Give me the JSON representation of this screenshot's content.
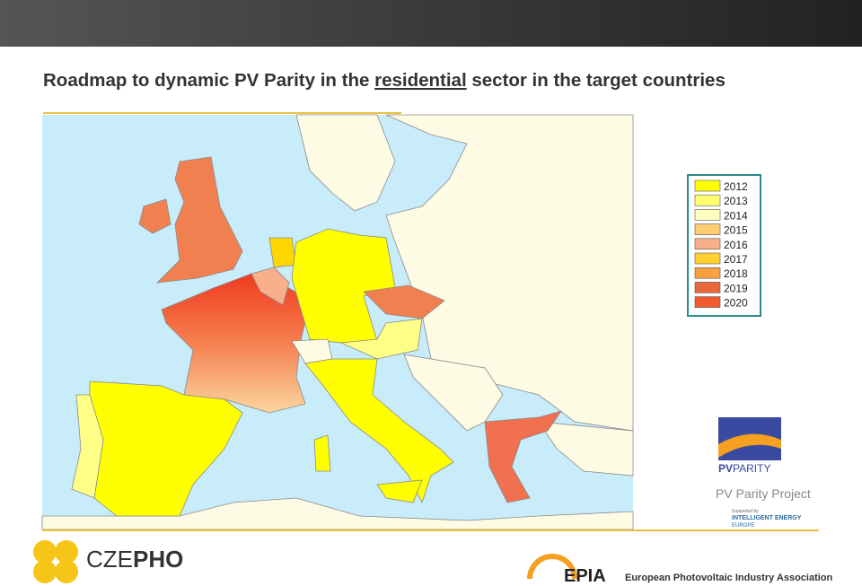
{
  "header": {
    "title_parts": [
      "Roadmap to dynamic PV Parity in the ",
      "residential",
      " sector in the target countries"
    ]
  },
  "legend": {
    "items": [
      {
        "label": "2012",
        "color": "#ffff00"
      },
      {
        "label": "2013",
        "color": "#ffff70"
      },
      {
        "label": "2014",
        "color": "#ffffc0"
      },
      {
        "label": "2015",
        "color": "#ffcc70"
      },
      {
        "label": "2016",
        "color": "#f9b08a"
      },
      {
        "label": "2017",
        "color": "#ffd030"
      },
      {
        "label": "2018",
        "color": "#f9a040"
      },
      {
        "label": "2019",
        "color": "#e8683a"
      },
      {
        "label": "2020",
        "color": "#f25a30"
      }
    ]
  },
  "logos": {
    "czepho_a": "CZE",
    "czepho_b": "PHO",
    "pv": "PV",
    "parity": "PARITY",
    "pvparity_project": "PV Parity Project",
    "supported_by": "Supported by",
    "iee": "INTELLIGENT ENERGY",
    "iee2": "EUROPE",
    "epia": "EPIA",
    "epia_full": "European Photovoltaic Industry Association"
  }
}
